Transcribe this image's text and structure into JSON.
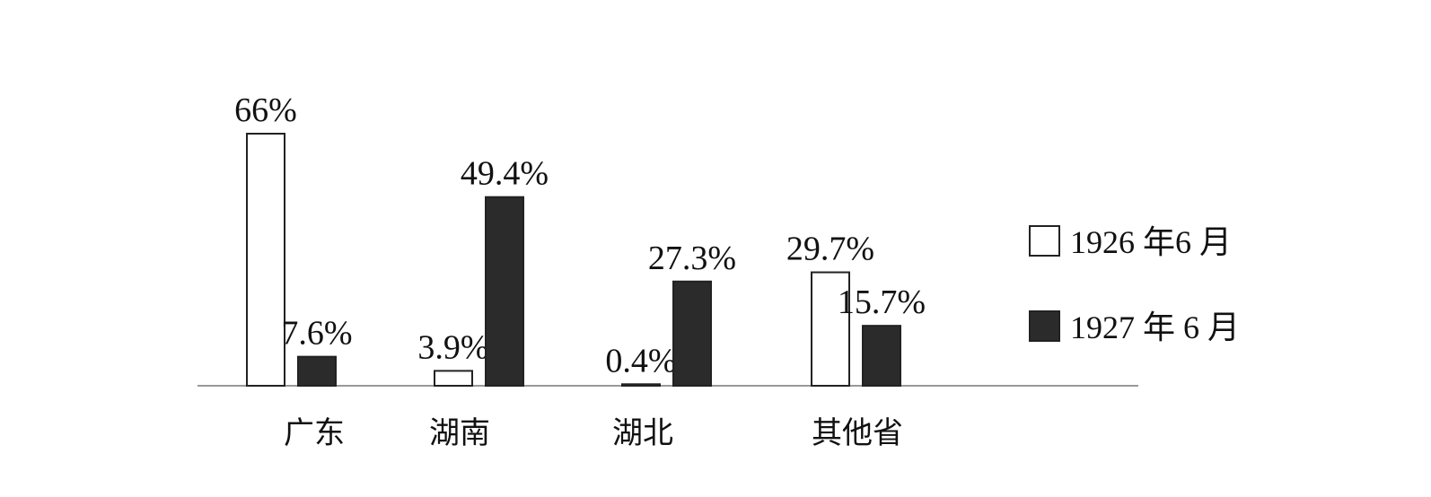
{
  "chart_data": {
    "type": "bar",
    "categories": [
      "广东",
      "湖南",
      "湖北",
      "其他省"
    ],
    "series": [
      {
        "name": "1926 年6 月",
        "values": [
          66,
          3.9,
          0.4,
          29.7
        ],
        "labels": [
          "66%",
          "3.9%",
          "0.4%",
          "29.7%"
        ],
        "color": "#ffffff"
      },
      {
        "name": "1927 年 6 月",
        "values": [
          7.6,
          49.4,
          27.3,
          15.7
        ],
        "labels": [
          "7.6%",
          "49.4%",
          "27.3%",
          "15.7%"
        ],
        "color": "#2b2b2b"
      }
    ],
    "ylim": [
      0,
      70
    ],
    "grid": false,
    "legend": "right",
    "title": "",
    "xlabel": "",
    "ylabel": ""
  }
}
